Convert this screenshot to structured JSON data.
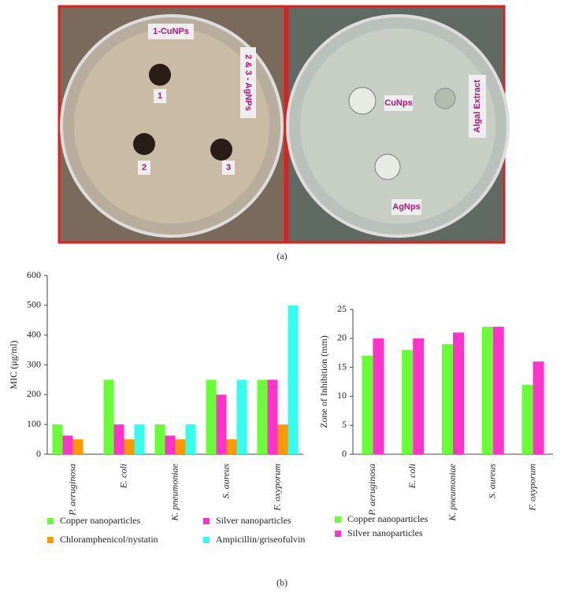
{
  "panel_a": {
    "left_plate": {
      "label_top": "1-CuNPs",
      "label_side": "2 & 3 - AgNPs",
      "wells": [
        "1",
        "2",
        "3"
      ]
    },
    "right_plate": {
      "label_center": "CuNps",
      "label_side": "Algal Extract",
      "label_bottom": "AgNps"
    },
    "caption": "(a)"
  },
  "caption_b": "(b)",
  "chart_data": [
    {
      "type": "bar",
      "y_label": "MIC (μg/ml)",
      "categories": [
        "P. aeruginosa",
        "E. coli",
        "K. pneumoniae",
        "S. aureus",
        "F. oxyporum"
      ],
      "series": [
        {
          "name": "Copper nanoparticles",
          "color": "#66ff33",
          "values": [
            100,
            250,
            100,
            250,
            250
          ]
        },
        {
          "name": "Silver nanoparticles",
          "color": "#ff33cc",
          "values": [
            62.5,
            100,
            62.5,
            200,
            250
          ]
        },
        {
          "name": "Chloramphenicol/nystatin",
          "color": "#ff9900",
          "values": [
            50,
            50,
            50,
            50,
            100
          ]
        },
        {
          "name": "Ampicillin/griseofulvin",
          "color": "#33ffee",
          "values": [
            0,
            100,
            100,
            250,
            500
          ]
        }
      ],
      "ylim": [
        0,
        600
      ],
      "yticks": [
        0,
        100,
        200,
        300,
        400,
        500,
        600
      ],
      "grid": false
    },
    {
      "type": "bar",
      "y_label": "Zone of Inhibition (mm)",
      "categories": [
        "P. aeruginosa",
        "E. coli",
        "K. pneumoniae",
        "S. aureus",
        "F. oxyporum"
      ],
      "series": [
        {
          "name": "Copper nanoparticles",
          "color": "#66ff33",
          "values": [
            17,
            18,
            19,
            22,
            12
          ]
        },
        {
          "name": "Silver nanoparticles",
          "color": "#ff33cc",
          "values": [
            20,
            20,
            21,
            22,
            16
          ]
        }
      ],
      "ylim": [
        0,
        25
      ],
      "yticks": [
        0,
        5,
        10,
        15,
        20,
        25
      ],
      "grid": false
    }
  ]
}
